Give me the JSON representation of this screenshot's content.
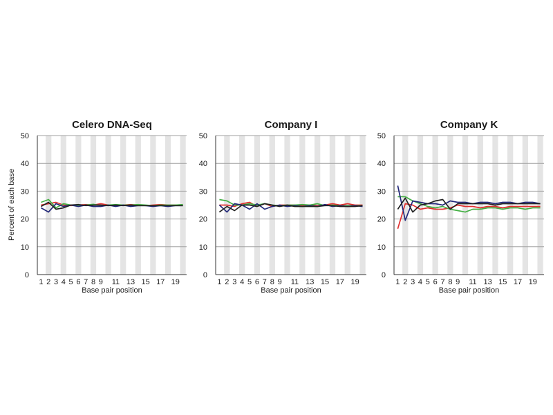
{
  "ylabel": "Percent of each base",
  "xlabel": "Base pair position",
  "colors": {
    "band": "#e4e4e4",
    "grid": "#a0a0a0",
    "axis": "#333333"
  },
  "chart_data": [
    {
      "type": "line",
      "title": "Celero DNA-Seq",
      "xlabel": "Base pair position",
      "ylabel": "Percent of each base",
      "ylim": [
        0,
        50
      ],
      "yticks": [
        0,
        10,
        20,
        30,
        40,
        50
      ],
      "xlim": [
        1,
        20
      ],
      "xticks": [
        1,
        2,
        3,
        4,
        5,
        6,
        7,
        8,
        9,
        11,
        13,
        15,
        17,
        19
      ],
      "grid": true,
      "x": [
        1,
        2,
        3,
        4,
        5,
        6,
        7,
        8,
        9,
        10,
        11,
        12,
        13,
        14,
        15,
        16,
        17,
        18,
        19,
        20
      ],
      "series": [
        {
          "color": "#e03030",
          "values": [
            25,
            25.5,
            26,
            25,
            24.8,
            25,
            25.2,
            25,
            25.5,
            25,
            24.8,
            25,
            25.2,
            25,
            24.8,
            25,
            25.2,
            25,
            25,
            25
          ]
        },
        {
          "color": "#45b045",
          "values": [
            26,
            27,
            24,
            25.5,
            25,
            24.8,
            25,
            25.3,
            24.8,
            25,
            25.2,
            25,
            25,
            25.2,
            25,
            24.8,
            25,
            25,
            25,
            25.2
          ]
        },
        {
          "color": "#23297a",
          "values": [
            24,
            22.5,
            25.5,
            24.5,
            25,
            24.5,
            25,
            24.5,
            24.5,
            25,
            24.5,
            25,
            24.5,
            24.8,
            24.8,
            24.5,
            24.8,
            24.5,
            24.8,
            24.8
          ]
        },
        {
          "color": "#222222",
          "values": [
            24.5,
            26,
            23.5,
            24,
            25,
            25.2,
            24.8,
            25,
            25,
            24.8,
            25,
            24.8,
            25,
            24.8,
            24.8,
            24.8,
            24.8,
            24.8,
            24.8,
            24.8
          ]
        }
      ]
    },
    {
      "type": "line",
      "title": "Company I",
      "xlabel": "Base pair position",
      "ylabel": "",
      "ylim": [
        0,
        50
      ],
      "yticks": [
        0,
        10,
        20,
        30,
        40,
        50
      ],
      "xlim": [
        1,
        20
      ],
      "xticks": [
        1,
        2,
        3,
        4,
        5,
        6,
        7,
        8,
        9,
        11,
        13,
        15,
        17,
        19
      ],
      "grid": true,
      "x": [
        1,
        2,
        3,
        4,
        5,
        6,
        7,
        8,
        9,
        10,
        11,
        12,
        13,
        14,
        15,
        16,
        17,
        18,
        19,
        20
      ],
      "series": [
        {
          "color": "#e03030",
          "values": [
            25,
            25,
            24.5,
            25.5,
            26,
            24.5,
            25.5,
            24.5,
            25,
            25,
            25,
            24.8,
            25,
            24.8,
            25,
            25.5,
            25,
            25.5,
            25,
            25
          ]
        },
        {
          "color": "#45b045",
          "values": [
            27,
            26.5,
            25,
            25,
            25.5,
            25,
            25.5,
            25,
            24.8,
            25,
            25,
            25.2,
            25,
            25.5,
            24.8,
            25,
            24.8,
            24.8,
            24.8,
            24.8
          ]
        },
        {
          "color": "#23297a",
          "values": [
            25,
            22.5,
            25.5,
            25,
            23.5,
            25.5,
            23.5,
            24.5,
            25,
            24.5,
            24.8,
            24.5,
            24.8,
            24.5,
            25.2,
            24.5,
            24.8,
            24.5,
            24.8,
            24.5
          ]
        },
        {
          "color": "#222222",
          "values": [
            22.5,
            24.5,
            23,
            25,
            25,
            24.5,
            25.5,
            25,
            24.5,
            25,
            24.5,
            24.5,
            24.5,
            24.5,
            24.8,
            24.8,
            24.5,
            24.5,
            24.5,
            24.8
          ]
        }
      ]
    },
    {
      "type": "line",
      "title": "Company K",
      "xlabel": "Base pair position",
      "ylabel": "",
      "ylim": [
        0,
        50
      ],
      "yticks": [
        0,
        10,
        20,
        30,
        40,
        50
      ],
      "xlim": [
        1,
        20
      ],
      "xticks": [
        1,
        2,
        3,
        4,
        5,
        6,
        7,
        8,
        9,
        11,
        13,
        15,
        17,
        19
      ],
      "grid": true,
      "x": [
        1,
        2,
        3,
        4,
        5,
        6,
        7,
        8,
        9,
        10,
        11,
        12,
        13,
        14,
        15,
        16,
        17,
        18,
        19,
        20
      ],
      "series": [
        {
          "color": "#e03030",
          "values": [
            16.5,
            25.5,
            25,
            23.5,
            24,
            23.5,
            23.5,
            24,
            25,
            24.5,
            24.5,
            24,
            24.5,
            24.5,
            24,
            24.5,
            24.5,
            24.5,
            24.5,
            24.5
          ]
        },
        {
          "color": "#45b045",
          "values": [
            28,
            28,
            26.5,
            25.5,
            24.5,
            24,
            24.5,
            23.5,
            23,
            22.5,
            23.5,
            23.5,
            24,
            24,
            23.5,
            24,
            24,
            23.5,
            24,
            24
          ]
        },
        {
          "color": "#23297a",
          "values": [
            32,
            19.5,
            26.5,
            26,
            25.5,
            25.5,
            25,
            26.5,
            26,
            26,
            25.5,
            26,
            26,
            25.5,
            26,
            26,
            25.5,
            26,
            26,
            25.5
          ]
        },
        {
          "color": "#222222",
          "values": [
            23.5,
            27.5,
            22.5,
            25,
            25.5,
            26.5,
            27,
            23.5,
            25.5,
            25.5,
            25.5,
            25.5,
            25.5,
            25,
            25.5,
            25.5,
            25.5,
            25.5,
            25.5,
            25.5
          ]
        }
      ]
    }
  ]
}
